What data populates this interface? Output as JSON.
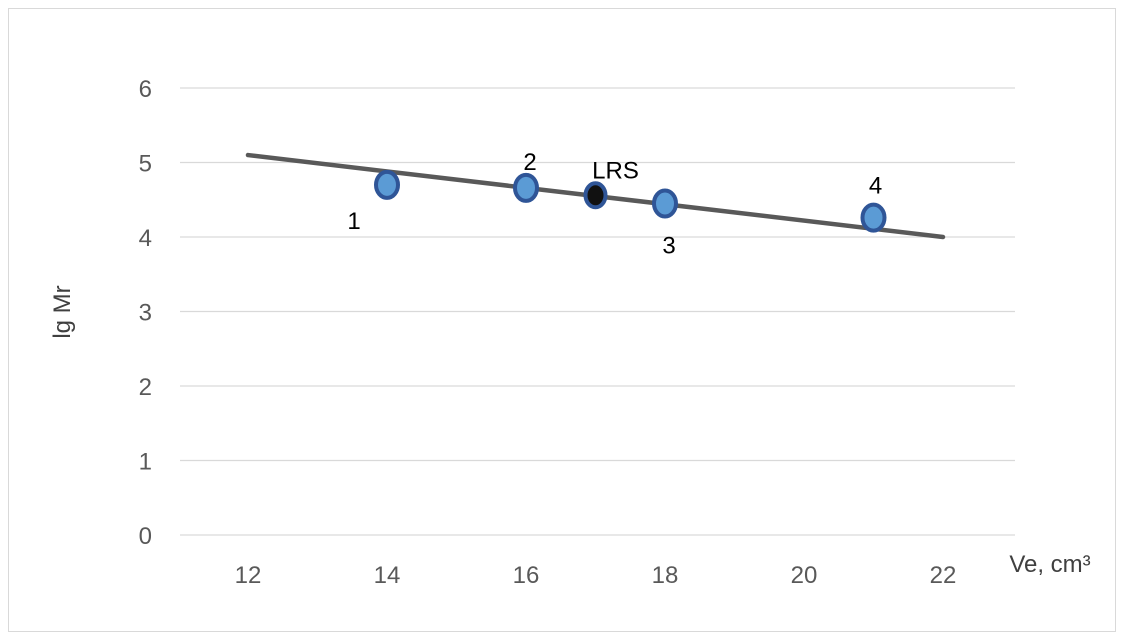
{
  "chart_data": {
    "type": "scatter",
    "xlabel": "Ve, cm³",
    "ylabel": "lg Mr",
    "xlim": [
      11,
      23
    ],
    "ylim": [
      0,
      6
    ],
    "x_ticks": [
      "12",
      "14",
      "16",
      "18",
      "20",
      "22"
    ],
    "y_ticks": [
      "0",
      "1",
      "2",
      "3",
      "4",
      "5",
      "6"
    ],
    "grid": "horizontal",
    "series": [
      {
        "points": [
          {
            "x": 14,
            "y": 4.7,
            "label": "1"
          },
          {
            "x": 16,
            "y": 4.66,
            "label": "2"
          },
          {
            "x": 18,
            "y": 4.45,
            "label": "3"
          },
          {
            "x": 21,
            "y": 4.26,
            "label": "4"
          }
        ],
        "color": "#4a7ebb"
      },
      {
        "points": [
          {
            "x": 17,
            "y": 4.56,
            "label": "LRS"
          }
        ],
        "color": "#1f1f1f"
      }
    ],
    "trendline": {
      "x": [
        12,
        22
      ],
      "y": [
        5.1,
        4.0
      ],
      "color": "#595959"
    }
  }
}
